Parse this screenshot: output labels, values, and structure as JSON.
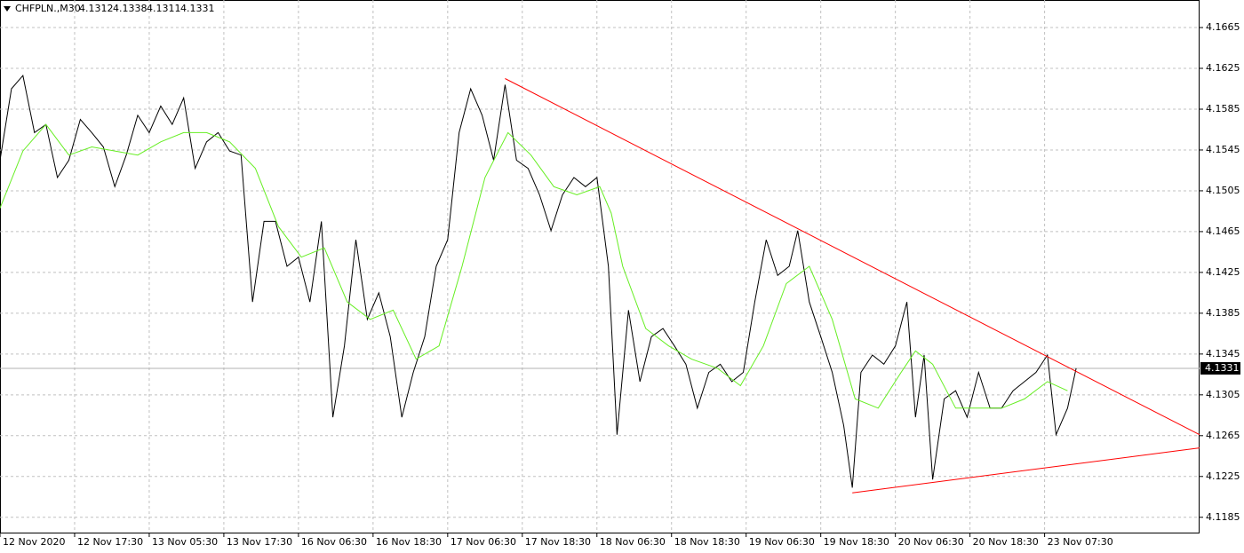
{
  "chart_data": {
    "type": "line",
    "symbol": "CHFPLN.,M30",
    "ohlc": [
      4.1312,
      4.1338,
      4.1311,
      4.1331
    ],
    "last_price": 4.1331,
    "xlim": [
      0,
      418
    ],
    "ylim": [
      4.117,
      4.1692
    ],
    "grid": true,
    "xticks": [
      {
        "value": 0,
        "label": "12 Nov 2020"
      },
      {
        "value": 26,
        "label": "12 Nov 17:30"
      },
      {
        "value": 52,
        "label": "13 Nov 05:30"
      },
      {
        "value": 78,
        "label": "13 Nov 17:30"
      },
      {
        "value": 104,
        "label": "16 Nov 06:30"
      },
      {
        "value": 130,
        "label": "16 Nov 18:30"
      },
      {
        "value": 156,
        "label": "17 Nov 06:30"
      },
      {
        "value": 182,
        "label": "17 Nov 18:30"
      },
      {
        "value": 208,
        "label": "18 Nov 06:30"
      },
      {
        "value": 234,
        "label": "18 Nov 18:30"
      },
      {
        "value": 260,
        "label": "19 Nov 06:30"
      },
      {
        "value": 286,
        "label": "19 Nov 18:30"
      },
      {
        "value": 312,
        "label": "20 Nov 06:30"
      },
      {
        "value": 338,
        "label": "20 Nov 18:30"
      },
      {
        "value": 364,
        "label": "23 Nov 07:30"
      }
    ],
    "yticks": [
      4.1665,
      4.1625,
      4.1585,
      4.1545,
      4.1505,
      4.1465,
      4.1425,
      4.1385,
      4.1345,
      4.1305,
      4.1265,
      4.1225,
      4.1185
    ],
    "series": [
      {
        "color": "#000000",
        "x": [
          0,
          4,
          8,
          12,
          16,
          20,
          24,
          28,
          32,
          36,
          40,
          44,
          48,
          52,
          56,
          60,
          64,
          68,
          72,
          76,
          80,
          84,
          88,
          92,
          96,
          100,
          104,
          108,
          112,
          116,
          120,
          124,
          128,
          132,
          136,
          140,
          144,
          148,
          152,
          156,
          160,
          164,
          168,
          172,
          176,
          180,
          184,
          188,
          192,
          196,
          200,
          204,
          208,
          212,
          215,
          219,
          223,
          227,
          231,
          235,
          239,
          243,
          247,
          251,
          255,
          259,
          263,
          267,
          271,
          275,
          278,
          282,
          286,
          290,
          294,
          297,
          300,
          304,
          308,
          312,
          316,
          319,
          322,
          325,
          329,
          333,
          337,
          341,
          345,
          349,
          353,
          357,
          361,
          365,
          368,
          372,
          375
        ],
        "values": [
          4.1535,
          4.1605,
          4.1618,
          4.1562,
          4.157,
          4.1518,
          4.1535,
          4.1575,
          4.1562,
          4.1548,
          4.1509,
          4.154,
          4.1579,
          4.1562,
          4.1588,
          4.157,
          4.1596,
          4.1527,
          4.1553,
          4.1562,
          4.1544,
          4.154,
          4.1396,
          4.1475,
          4.1475,
          4.1431,
          4.144,
          4.1396,
          4.1475,
          4.1283,
          4.1353,
          4.1457,
          4.1379,
          4.1405,
          4.1362,
          4.1283,
          4.1327,
          4.1362,
          4.1431,
          4.1457,
          4.1562,
          4.1605,
          4.1579,
          4.1535,
          4.1609,
          4.1535,
          4.1527,
          4.1501,
          4.1466,
          4.1501,
          4.1518,
          4.1509,
          4.1518,
          4.1431,
          4.1266,
          4.1388,
          4.1318,
          4.1362,
          4.137,
          4.1353,
          4.1335,
          4.1292,
          4.1327,
          4.1335,
          4.1318,
          4.1327,
          4.1396,
          4.1457,
          4.1422,
          4.1431,
          4.1466,
          4.1396,
          4.1362,
          4.1327,
          4.1275,
          4.1214,
          4.1327,
          4.1344,
          4.1335,
          4.1353,
          4.1396,
          4.1283,
          4.1344,
          4.1222,
          4.1301,
          4.1309,
          4.1283,
          4.1327,
          4.1292,
          4.1292,
          4.1309,
          4.1318,
          4.1327,
          4.1344,
          4.1266,
          4.1292,
          4.1331
        ]
      },
      {
        "color": "#66ee22",
        "x": [
          0,
          8,
          16,
          24,
          32,
          40,
          48,
          56,
          64,
          72,
          80,
          89,
          97,
          105,
          113,
          121,
          129,
          137,
          145,
          153,
          161,
          169,
          177,
          185,
          193,
          201,
          209,
          213,
          217,
          225,
          233,
          241,
          250,
          258,
          266,
          274,
          282,
          290,
          298,
          306,
          314,
          319,
          325,
          333,
          341,
          349,
          357,
          365,
          372
        ],
        "values": [
          4.1488,
          4.1544,
          4.157,
          4.154,
          4.1548,
          4.1544,
          4.154,
          4.1553,
          4.1562,
          4.1562,
          4.1553,
          4.1527,
          4.147,
          4.144,
          4.1449,
          4.1396,
          4.1379,
          4.1388,
          4.134,
          4.1353,
          4.1431,
          4.1518,
          4.1562,
          4.154,
          4.1509,
          4.1501,
          4.1509,
          4.1483,
          4.1431,
          4.137,
          4.1353,
          4.134,
          4.1331,
          4.1314,
          4.1353,
          4.1414,
          4.1431,
          4.1379,
          4.1301,
          4.1292,
          4.1327,
          4.1348,
          4.1335,
          4.1292,
          4.1292,
          4.1292,
          4.1301,
          4.1318,
          4.1309
        ]
      }
    ],
    "trendlines": [
      {
        "color": "#ff0000",
        "x": [
          176,
          418
        ],
        "values": [
          4.1615,
          4.1266
        ]
      },
      {
        "color": "#ff0000",
        "x": [
          297,
          418
        ],
        "values": [
          4.1209,
          4.1253
        ]
      }
    ]
  }
}
